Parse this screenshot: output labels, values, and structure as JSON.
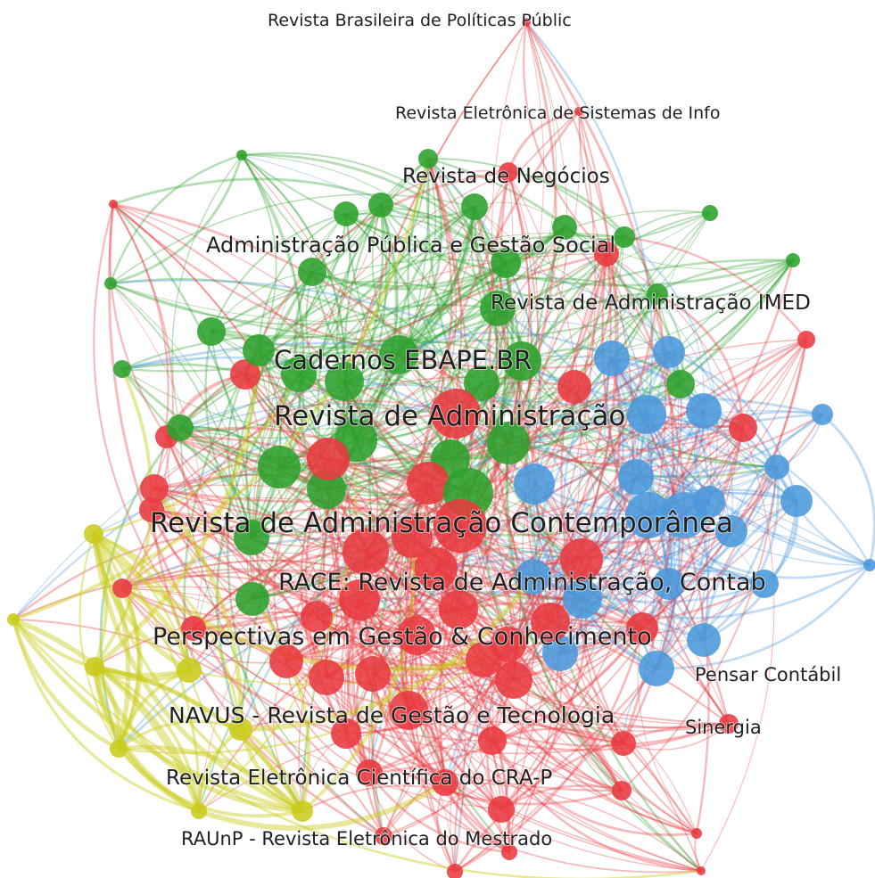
{
  "colors": {
    "red": "#e8393f",
    "green": "#2ca02c",
    "blue": "#4a98dc",
    "yellow": "#c9cc1c",
    "label": "#1f1f1f",
    "background": "#ffffff"
  },
  "labels": [
    {
      "text": "Revista Brasileira de Políticas Públic"
    },
    {
      "text": "Revista Eletrônica de Sistemas de Info"
    },
    {
      "text": "Revista de Negócios"
    },
    {
      "text": "Administração Pública e Gestão Social"
    },
    {
      "text": "Revista de Administração IMED"
    },
    {
      "text": "Cadernos EBAPE.BR"
    },
    {
      "text": "Revista de Administração"
    },
    {
      "text": "Revista de Administração Contemporânea"
    },
    {
      "text": "RACE: Revista de Administração, Contab"
    },
    {
      "text": "Perspectivas em Gestão & Conhecimento"
    },
    {
      "text": "Pensar Contábil"
    },
    {
      "text": "NAVUS - Revista de Gestão e Tecnologia"
    },
    {
      "text": "Sinergia"
    },
    {
      "text": "Revista Eletrônica Científica do CRA-P"
    },
    {
      "text": "RAUnP - Revista Eletrônica do Mestrado"
    }
  ]
}
